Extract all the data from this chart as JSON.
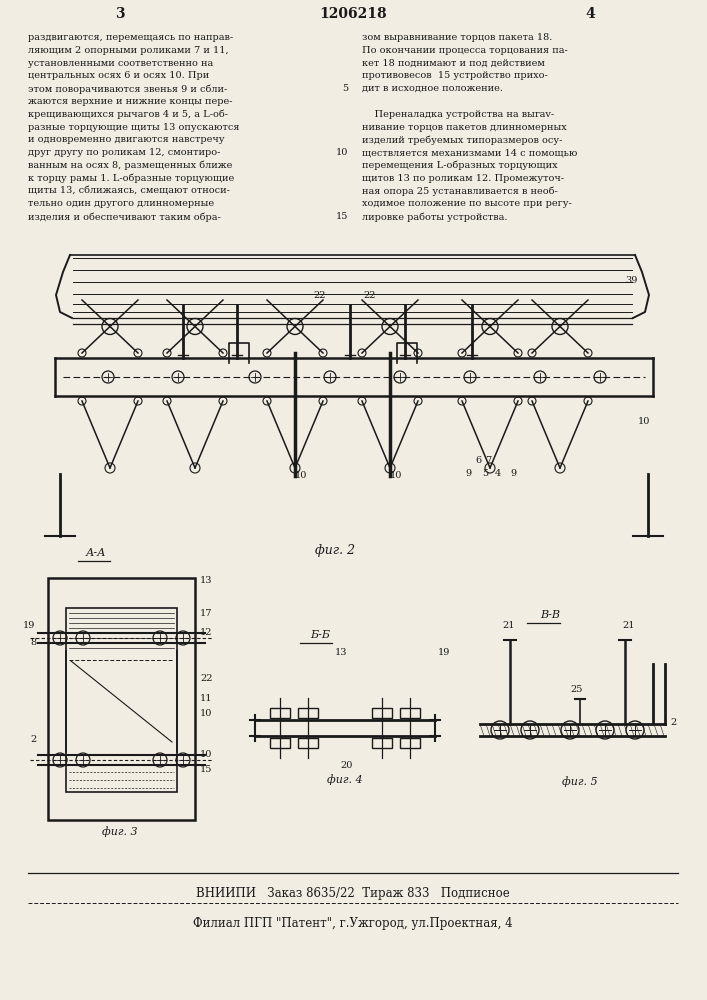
{
  "bg_color": "#f2ede3",
  "page_width": 7.07,
  "page_height": 10.0,
  "patent_number": "1206218",
  "page_left": "3",
  "page_right": "4",
  "text_left_col": [
    "раздвигаются, перемещаясь по направ-",
    "ляющим 2 опорными роликами 7 и 11,",
    "установленными соответственно на",
    "центральных осях 6 и осях 10. При",
    "этом поворачиваются звенья 9 и сбли-",
    "жаются верхние и нижние концы пере-",
    "крещивающихся рычагов 4 и 5, а L-об-",
    "разные торцующие щиты 13 опускаются",
    "и одновременно двигаются навстречу",
    "друг другу по роликам 12, смонтиро-",
    "ванным на осях 8, размещенных ближе",
    "к торцу рамы 1. L-образные торцующие",
    "щиты 13, сближаясь, смещают относи-",
    "тельно один другого длинномерные",
    "изделия и обеспечивают таким обра-"
  ],
  "text_right_col": [
    "зом выравнивание торцов пакета 18.",
    "По окончании процесса торцования па-",
    "кет 18 поднимают и под действием",
    "противовесов  15 устройство прихо-",
    "дит в исходное положение.",
    "",
    "    Переналадка устройства на выrav-",
    "нивание торцов пакетов длинномерных",
    "изделий требуемых типоразмеров осу-",
    "ществляется механизмами 14 с помощью",
    "перемещения L-образных торцующих",
    "щитов 13 по роликам 12. Промежуточ-",
    "ная опора 25 устанавливается в необ-",
    "ходимое положение по высоте при регу-",
    "лировке работы устройства."
  ],
  "footer_line1": "ВНИИПИ   Заказ 8635/22  Тираж 833   Подписное",
  "footer_line2": "Филиал ПГП \"Патент\", г.Ужгород, ул.Проектная, 4",
  "text_color": "#1a1a1a",
  "line_color": "#1a1a1a"
}
